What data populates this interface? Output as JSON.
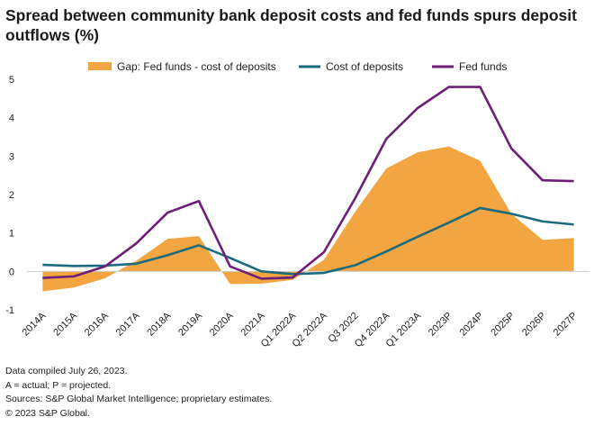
{
  "title": "Spread between community bank deposit costs and fed funds spurs deposit outflows (%)",
  "notes": [
    "Data compiled July 26, 2023.",
    "A = actual; P = projected.",
    "Sources: S&P Global Market Intelligence; proprietary estimates.",
    "© 2023 S&P Global."
  ],
  "colors": {
    "gap": "#F2A541",
    "cost": "#1B6B7E",
    "fed": "#6E1E78",
    "axis": "#cccccc"
  },
  "chart_data": {
    "type": "area",
    "title": "Spread between community bank deposit costs and fed funds spurs deposit outflows (%)",
    "categories": [
      "2014A",
      "2015A",
      "2016A",
      "2017A",
      "2018A",
      "2019A",
      "2020A",
      "2021A",
      "Q1 2022A",
      "Q2 2022A",
      "Q3 2022",
      "Q4 2022A",
      "Q1 2023A",
      "2023P",
      "2024P",
      "2025P",
      "2026P",
      "2027P"
    ],
    "ylim": [
      -1,
      5
    ],
    "yticks": [
      -1,
      0,
      1,
      2,
      3,
      4,
      5
    ],
    "grid": false,
    "legend_position": "top",
    "series": [
      {
        "name": "Gap: Fed funds - cost of deposits",
        "kind": "area",
        "values": [
          -0.52,
          -0.42,
          -0.18,
          0.28,
          0.85,
          0.92,
          -0.33,
          -0.32,
          -0.22,
          0.3,
          1.55,
          2.68,
          3.1,
          3.25,
          2.88,
          1.5,
          0.82,
          0.87
        ]
      },
      {
        "name": "Cost of deposits",
        "kind": "line",
        "values": [
          0.17,
          0.14,
          0.15,
          0.2,
          0.42,
          0.68,
          0.35,
          0.0,
          -0.07,
          -0.04,
          0.16,
          0.52,
          0.9,
          1.27,
          1.65,
          1.5,
          1.3,
          1.22
        ]
      },
      {
        "name": "Fed funds",
        "kind": "line",
        "values": [
          -0.17,
          -0.13,
          0.13,
          0.73,
          1.53,
          1.83,
          0.13,
          -0.19,
          -0.16,
          0.5,
          1.9,
          3.45,
          4.25,
          4.8,
          4.8,
          3.2,
          2.37,
          2.35
        ]
      }
    ]
  }
}
